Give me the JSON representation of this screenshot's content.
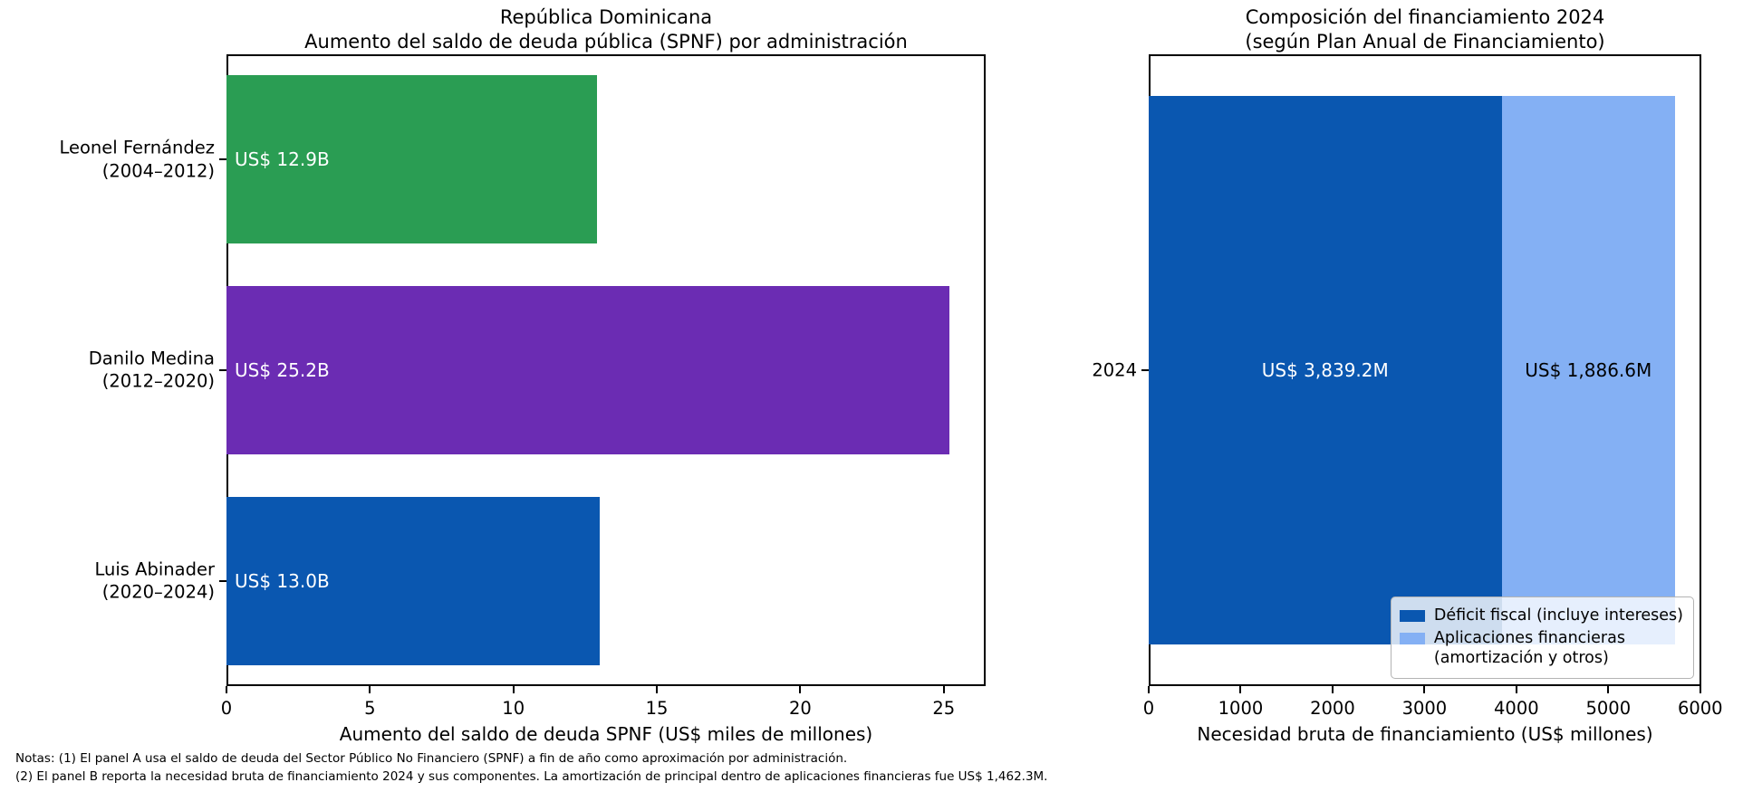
{
  "figure": {
    "notes": [
      "Notas: (1) El panel A usa el saldo de deuda del Sector Público No Financiero (SPNF) a fin de año como aproximación por administración.",
      "(2) El panel B reporta la necesidad bruta de financiamiento 2024 y sus componentes. La amortización de principal dentro de aplicaciones financieras fue US$ 1,462.3M."
    ]
  },
  "chart_data": [
    {
      "type": "bar",
      "orientation": "horizontal",
      "title": "República Dominicana\nAumento del saldo de deuda pública (SPNF) por administración",
      "categories": [
        "Leonel Fernández\n(2004–2012)",
        "Danilo Medina\n(2012–2020)",
        "Luis Abinader\n(2020–2024)"
      ],
      "values": [
        12.9,
        25.2,
        13.0
      ],
      "bar_labels": [
        "US$ 12.9B",
        "US$ 25.2B",
        "US$ 13.0B"
      ],
      "bar_colors": [
        "#2a9d53",
        "#6b2cb3",
        "#0a57b0"
      ],
      "bar_label_color": "#ffffff",
      "xlabel": "Aumento del saldo de deuda SPNF (US$ miles de millones)",
      "ylabel": "",
      "xlim": [
        0,
        26.46
      ],
      "xticks": [
        0,
        5,
        10,
        15,
        20,
        25
      ],
      "grid": false,
      "legend_position": "none"
    },
    {
      "type": "bar",
      "orientation": "horizontal",
      "stacked": true,
      "title": "Composición del financiamiento 2024\n(según Plan Anual de Financiamiento)",
      "categories": [
        "2024"
      ],
      "series": [
        {
          "name": "Déficit fiscal (incluye intereses)",
          "values": [
            3839.2
          ],
          "color": "#0a57b0",
          "label": "US$ 3,839.2M",
          "label_color": "#ffffff"
        },
        {
          "name": "Aplicaciones financieras\n(amortización y otros)",
          "values": [
            1886.6
          ],
          "color": "#84b0f4",
          "label": "US$ 1,886.6M",
          "label_color": "#000000"
        }
      ],
      "xlabel": "Necesidad bruta de financiamiento (US$ millones)",
      "ylabel": "",
      "xlim": [
        0,
        6012
      ],
      "xticks": [
        0,
        1000,
        2000,
        3000,
        4000,
        5000,
        6000
      ],
      "grid": false,
      "legend_position": "lower right"
    }
  ]
}
